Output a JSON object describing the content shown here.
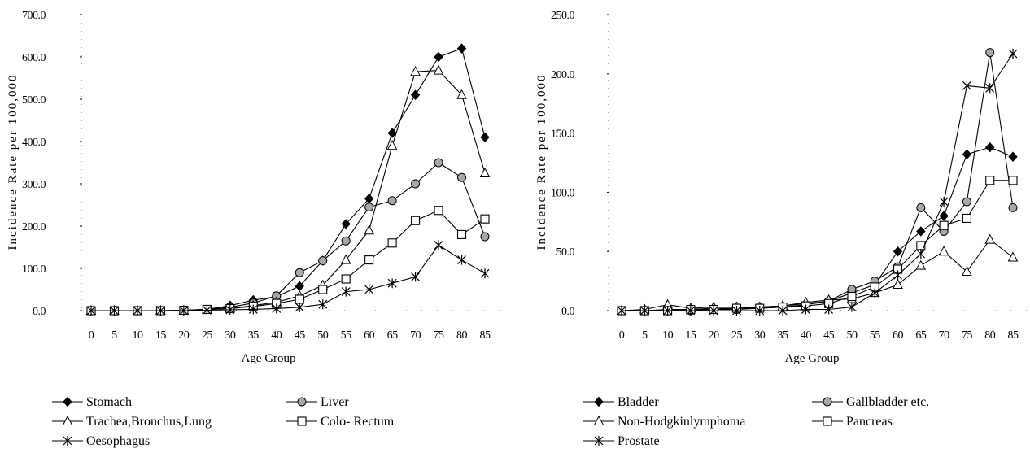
{
  "chart_data": [
    {
      "type": "line",
      "xlabel": "Age Group",
      "ylabel": "Incidence Rate per 100,000",
      "ylim": [
        0,
        700
      ],
      "yticks": [
        "0.0",
        "100.0",
        "200.0",
        "300.0",
        "400.0",
        "500.0",
        "600.0",
        "700.0"
      ],
      "categories": [
        "0",
        "5",
        "10",
        "15",
        "20",
        "25",
        "30",
        "35",
        "40",
        "45",
        "50",
        "55",
        "60",
        "65",
        "70",
        "75",
        "80",
        "85"
      ],
      "legend": "bottom",
      "grid": false,
      "series": [
        {
          "name": "Stomach",
          "marker": "diamond-filled",
          "values": [
            0,
            0,
            0,
            0,
            1,
            3,
            12,
            25,
            33,
            58,
            118,
            205,
            265,
            420,
            510,
            600,
            620,
            410
          ]
        },
        {
          "name": "Liver",
          "marker": "circle-gray",
          "values": [
            0,
            0,
            0,
            0,
            1,
            3,
            8,
            18,
            35,
            90,
            118,
            165,
            245,
            260,
            300,
            350,
            315,
            175
          ]
        },
        {
          "name": "Trachea,Bronchus,Lung",
          "marker": "triangle-open",
          "values": [
            0,
            0,
            0,
            0,
            0,
            2,
            5,
            12,
            20,
            35,
            60,
            120,
            190,
            390,
            565,
            568,
            510,
            325
          ]
        },
        {
          "name": "Colo- Rectum",
          "marker": "square-open",
          "values": [
            0,
            0,
            0,
            0,
            1,
            3,
            5,
            10,
            17,
            27,
            50,
            75,
            120,
            160,
            213,
            237,
            180,
            217
          ]
        },
        {
          "name": "Oesophagus",
          "marker": "star",
          "values": [
            0,
            0,
            0,
            0,
            0,
            1,
            2,
            3,
            5,
            8,
            15,
            45,
            50,
            65,
            80,
            155,
            120,
            88
          ]
        }
      ]
    },
    {
      "type": "line",
      "xlabel": "Age Group",
      "ylabel": "Incidence Rate per 100,000",
      "ylim": [
        0,
        250
      ],
      "yticks": [
        "0.0",
        "50.0",
        "100.0",
        "150.0",
        "200.0",
        "250.0"
      ],
      "categories": [
        "0",
        "5",
        "10",
        "15",
        "20",
        "25",
        "30",
        "35",
        "40",
        "45",
        "50",
        "55",
        "60",
        "65",
        "70",
        "75",
        "80",
        "85"
      ],
      "legend": "bottom",
      "grid": false,
      "series": [
        {
          "name": "Bladder",
          "marker": "diamond-filled",
          "values": [
            0,
            0,
            1,
            1,
            2,
            2,
            3,
            4,
            6,
            8,
            15,
            22,
            50,
            67,
            80,
            132,
            138,
            130
          ]
        },
        {
          "name": "Gallbladder etc.",
          "marker": "circle-gray",
          "values": [
            0,
            0,
            0,
            0,
            1,
            1,
            2,
            3,
            5,
            8,
            18,
            25,
            37,
            87,
            67,
            92,
            218,
            87
          ]
        },
        {
          "name": "Non-Hodgkinlymphoma",
          "marker": "triangle-open",
          "values": [
            0,
            1,
            5,
            2,
            3,
            3,
            3,
            4,
            7,
            9,
            10,
            15,
            22,
            38,
            50,
            33,
            60,
            45
          ]
        },
        {
          "name": "Pancreas",
          "marker": "square-open",
          "values": [
            0,
            0,
            0,
            1,
            1,
            2,
            2,
            3,
            4,
            6,
            12,
            20,
            35,
            55,
            72,
            78,
            110,
            110
          ]
        },
        {
          "name": "Prostate",
          "marker": "star",
          "values": [
            0,
            0,
            0,
            0,
            0,
            0,
            0,
            0,
            1,
            1,
            3,
            15,
            30,
            48,
            92,
            190,
            188,
            217
          ]
        }
      ]
    }
  ]
}
